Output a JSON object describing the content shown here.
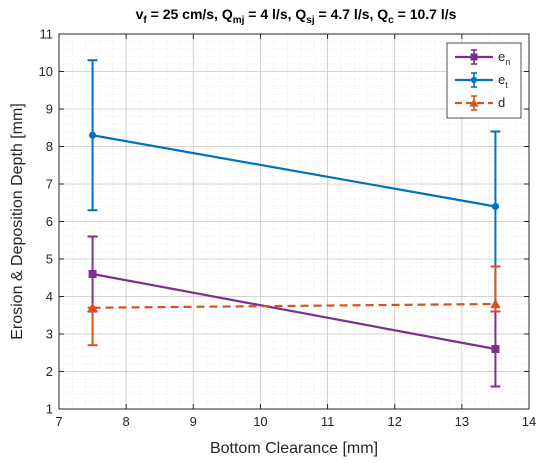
{
  "chart_data": {
    "type": "line",
    "title": {
      "parts": [
        {
          "t": "v"
        },
        {
          "t": "f",
          "sub": true
        },
        {
          "t": " = 25 cm/s, Q"
        },
        {
          "t": "mj",
          "sub": true
        },
        {
          "t": " = 4 l/s, Q"
        },
        {
          "t": "sj",
          "sub": true
        },
        {
          "t": " = 4.7 l/s, Q"
        },
        {
          "t": "c",
          "sub": true
        },
        {
          "t": " = 10.7 l/s"
        }
      ]
    },
    "xlabel": "Bottom Clearance [mm]",
    "ylabel": "Erosion & Deposition Depth [mm]",
    "xlim": [
      7,
      14
    ],
    "ylim": [
      1,
      11
    ],
    "xticks": [
      "7",
      "8",
      "9",
      "10",
      "11",
      "12",
      "13",
      "14"
    ],
    "yticks": [
      "1",
      "2",
      "3",
      "4",
      "5",
      "6",
      "7",
      "8",
      "9",
      "10",
      "11"
    ],
    "grid": "major and minor, dotted",
    "legend_position": "top-right",
    "x": [
      7.5,
      13.5
    ],
    "series": [
      {
        "name": "e",
        "name_sub": "n",
        "color": "#7e2f8e",
        "linestyle": "solid",
        "marker": "square",
        "values": [
          4.6,
          2.6
        ],
        "err_low": [
          1.0,
          1.0
        ],
        "err_high": [
          1.0,
          1.0
        ]
      },
      {
        "name": "e",
        "name_sub": "t",
        "color": "#0072bd",
        "linestyle": "solid",
        "marker": "circle",
        "values": [
          8.3,
          6.4
        ],
        "err_low": [
          2.0,
          2.8
        ],
        "err_high": [
          2.0,
          2.0
        ]
      },
      {
        "name": "d",
        "name_sub": "",
        "color": "#d95319",
        "linestyle": "dashed",
        "marker": "triangle",
        "values": [
          3.7,
          3.8
        ],
        "err_low": [
          1.0,
          0.2
        ],
        "err_high": [
          0.0,
          1.0
        ]
      }
    ]
  }
}
